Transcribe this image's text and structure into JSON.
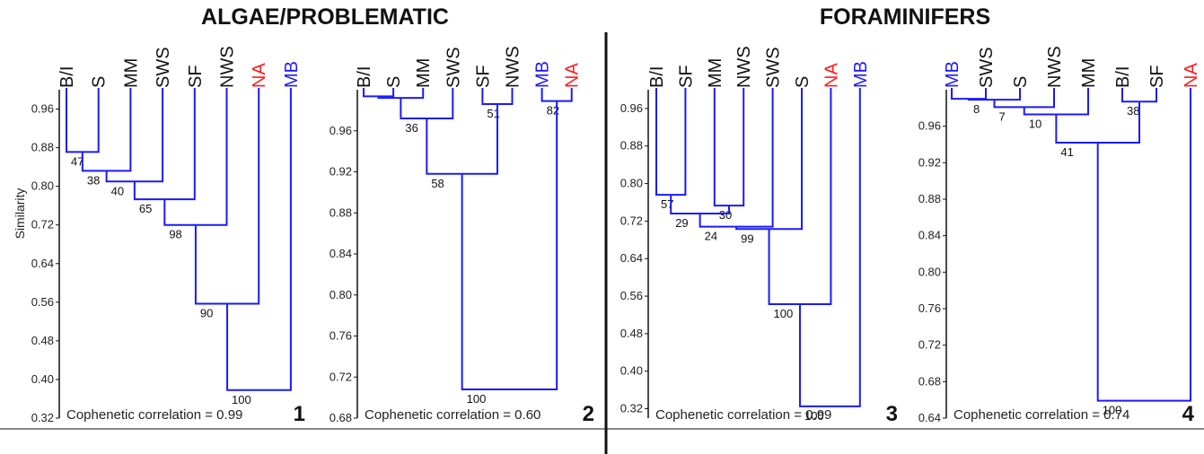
{
  "colors": {
    "line": "#1a1aff",
    "highlight_red": "#ff1a1a",
    "highlight_blue": "#1a1aff",
    "text": "#111111"
  },
  "titles": {
    "algae": "ALGAE/PROBLEMATIC",
    "forams": "FORAMINIFERS"
  },
  "y_axis_label": "Similarity",
  "panels": [
    {
      "number": "1",
      "cophenetic": "Cophenetic correlation = 0.99",
      "ticks": [
        "0.96",
        "0.88",
        "0.80",
        "0.72",
        "0.64",
        "0.56",
        "0.48",
        "0.40",
        "0.32"
      ],
      "ylim": [
        0.32,
        1.0
      ],
      "leaves": [
        {
          "label": "B/I"
        },
        {
          "label": "S"
        },
        {
          "label": "MM"
        },
        {
          "label": "SWS"
        },
        {
          "label": "SF"
        },
        {
          "label": "NWS"
        },
        {
          "label": "NA",
          "color": "red"
        },
        {
          "label": "MB",
          "color": "blue"
        }
      ],
      "merges": [
        {
          "a": 0,
          "b": 1,
          "h": 0.871,
          "label": "47"
        },
        {
          "a": 8,
          "b": 2,
          "h": 0.832,
          "label": "38"
        },
        {
          "a": 9,
          "b": 3,
          "h": 0.81,
          "label": "40"
        },
        {
          "a": 10,
          "b": 4,
          "h": 0.773,
          "label": "65"
        },
        {
          "a": 11,
          "b": 5,
          "h": 0.72,
          "label": "98"
        },
        {
          "a": 12,
          "b": 6,
          "h": 0.557,
          "label": "90"
        },
        {
          "a": 13,
          "b": 7,
          "h": 0.378,
          "label": "100"
        }
      ]
    },
    {
      "number": "2",
      "cophenetic": "Cophenetic correlation = 0.60",
      "ticks": [
        "0.96",
        "0.92",
        "0.88",
        "0.84",
        "0.80",
        "0.76",
        "0.72",
        "0.68"
      ],
      "ylim": [
        0.68,
        1.0
      ],
      "leaves": [
        {
          "label": "B/I"
        },
        {
          "label": "S"
        },
        {
          "label": "MM"
        },
        {
          "label": "SWS"
        },
        {
          "label": "SF"
        },
        {
          "label": "NWS"
        },
        {
          "label": "MB",
          "color": "blue"
        },
        {
          "label": "NA",
          "color": "red"
        }
      ],
      "merges": [
        {
          "a": 0,
          "b": 1,
          "h": 0.9935,
          "label": ""
        },
        {
          "a": 8,
          "b": 2,
          "h": 0.992,
          "label": ""
        },
        {
          "a": 9,
          "b": 3,
          "h": 0.972,
          "label": "36"
        },
        {
          "a": 4,
          "b": 5,
          "h": 0.986,
          "label": "51"
        },
        {
          "a": 6,
          "b": 7,
          "h": 0.989,
          "label": "82"
        },
        {
          "a": 10,
          "b": 11,
          "h": 0.918,
          "label": "58"
        },
        {
          "a": 13,
          "b": 12,
          "h": 0.708,
          "label": "100"
        }
      ]
    },
    {
      "number": "3",
      "cophenetic": "Cophenetic correlation = 0.99",
      "ticks": [
        "0.96",
        "0.88",
        "0.80",
        "0.72",
        "0.64",
        "0.56",
        "0.48",
        "0.40",
        "0.32"
      ],
      "ylim": [
        0.3,
        1.0
      ],
      "leaves": [
        {
          "label": "B/I"
        },
        {
          "label": "SF"
        },
        {
          "label": "MM"
        },
        {
          "label": "NWS"
        },
        {
          "label": "SWS"
        },
        {
          "label": "S"
        },
        {
          "label": "NA",
          "color": "red"
        },
        {
          "label": "MB",
          "color": "blue"
        }
      ],
      "merges": [
        {
          "a": 0,
          "b": 1,
          "h": 0.776,
          "label": "57"
        },
        {
          "a": 2,
          "b": 3,
          "h": 0.753,
          "label": "30"
        },
        {
          "a": 8,
          "b": 9,
          "h": 0.736,
          "label": "29"
        },
        {
          "a": 10,
          "b": 4,
          "h": 0.708,
          "label": "24"
        },
        {
          "a": 11,
          "b": 5,
          "h": 0.703,
          "label": "99"
        },
        {
          "a": 12,
          "b": 6,
          "h": 0.543,
          "label": "100"
        },
        {
          "a": 13,
          "b": 7,
          "h": 0.325,
          "label": "100"
        }
      ]
    },
    {
      "number": "4",
      "cophenetic": "Cophenetic correlation = 0.74",
      "ticks": [
        "0.96",
        "0.92",
        "0.88",
        "0.84",
        "0.80",
        "0.76",
        "0.72",
        "0.68",
        "0.64"
      ],
      "ylim": [
        0.64,
        1.0
      ],
      "leaves": [
        {
          "label": "MB",
          "color": "blue"
        },
        {
          "label": "SWS"
        },
        {
          "label": "S"
        },
        {
          "label": "NWS"
        },
        {
          "label": "MM"
        },
        {
          "label": "B/I"
        },
        {
          "label": "SF"
        },
        {
          "label": "NA",
          "color": "red"
        }
      ],
      "merges": [
        {
          "a": 0,
          "b": 1,
          "h": 0.99,
          "label": ""
        },
        {
          "a": 8,
          "b": 2,
          "h": 0.989,
          "label": "8"
        },
        {
          "a": 9,
          "b": 3,
          "h": 0.981,
          "label": "7"
        },
        {
          "a": 10,
          "b": 4,
          "h": 0.973,
          "label": "10"
        },
        {
          "a": 5,
          "b": 6,
          "h": 0.987,
          "label": "38"
        },
        {
          "a": 11,
          "b": 12,
          "h": 0.942,
          "label": "41"
        },
        {
          "a": 13,
          "b": 7,
          "h": 0.659,
          "label": "100"
        }
      ]
    }
  ]
}
